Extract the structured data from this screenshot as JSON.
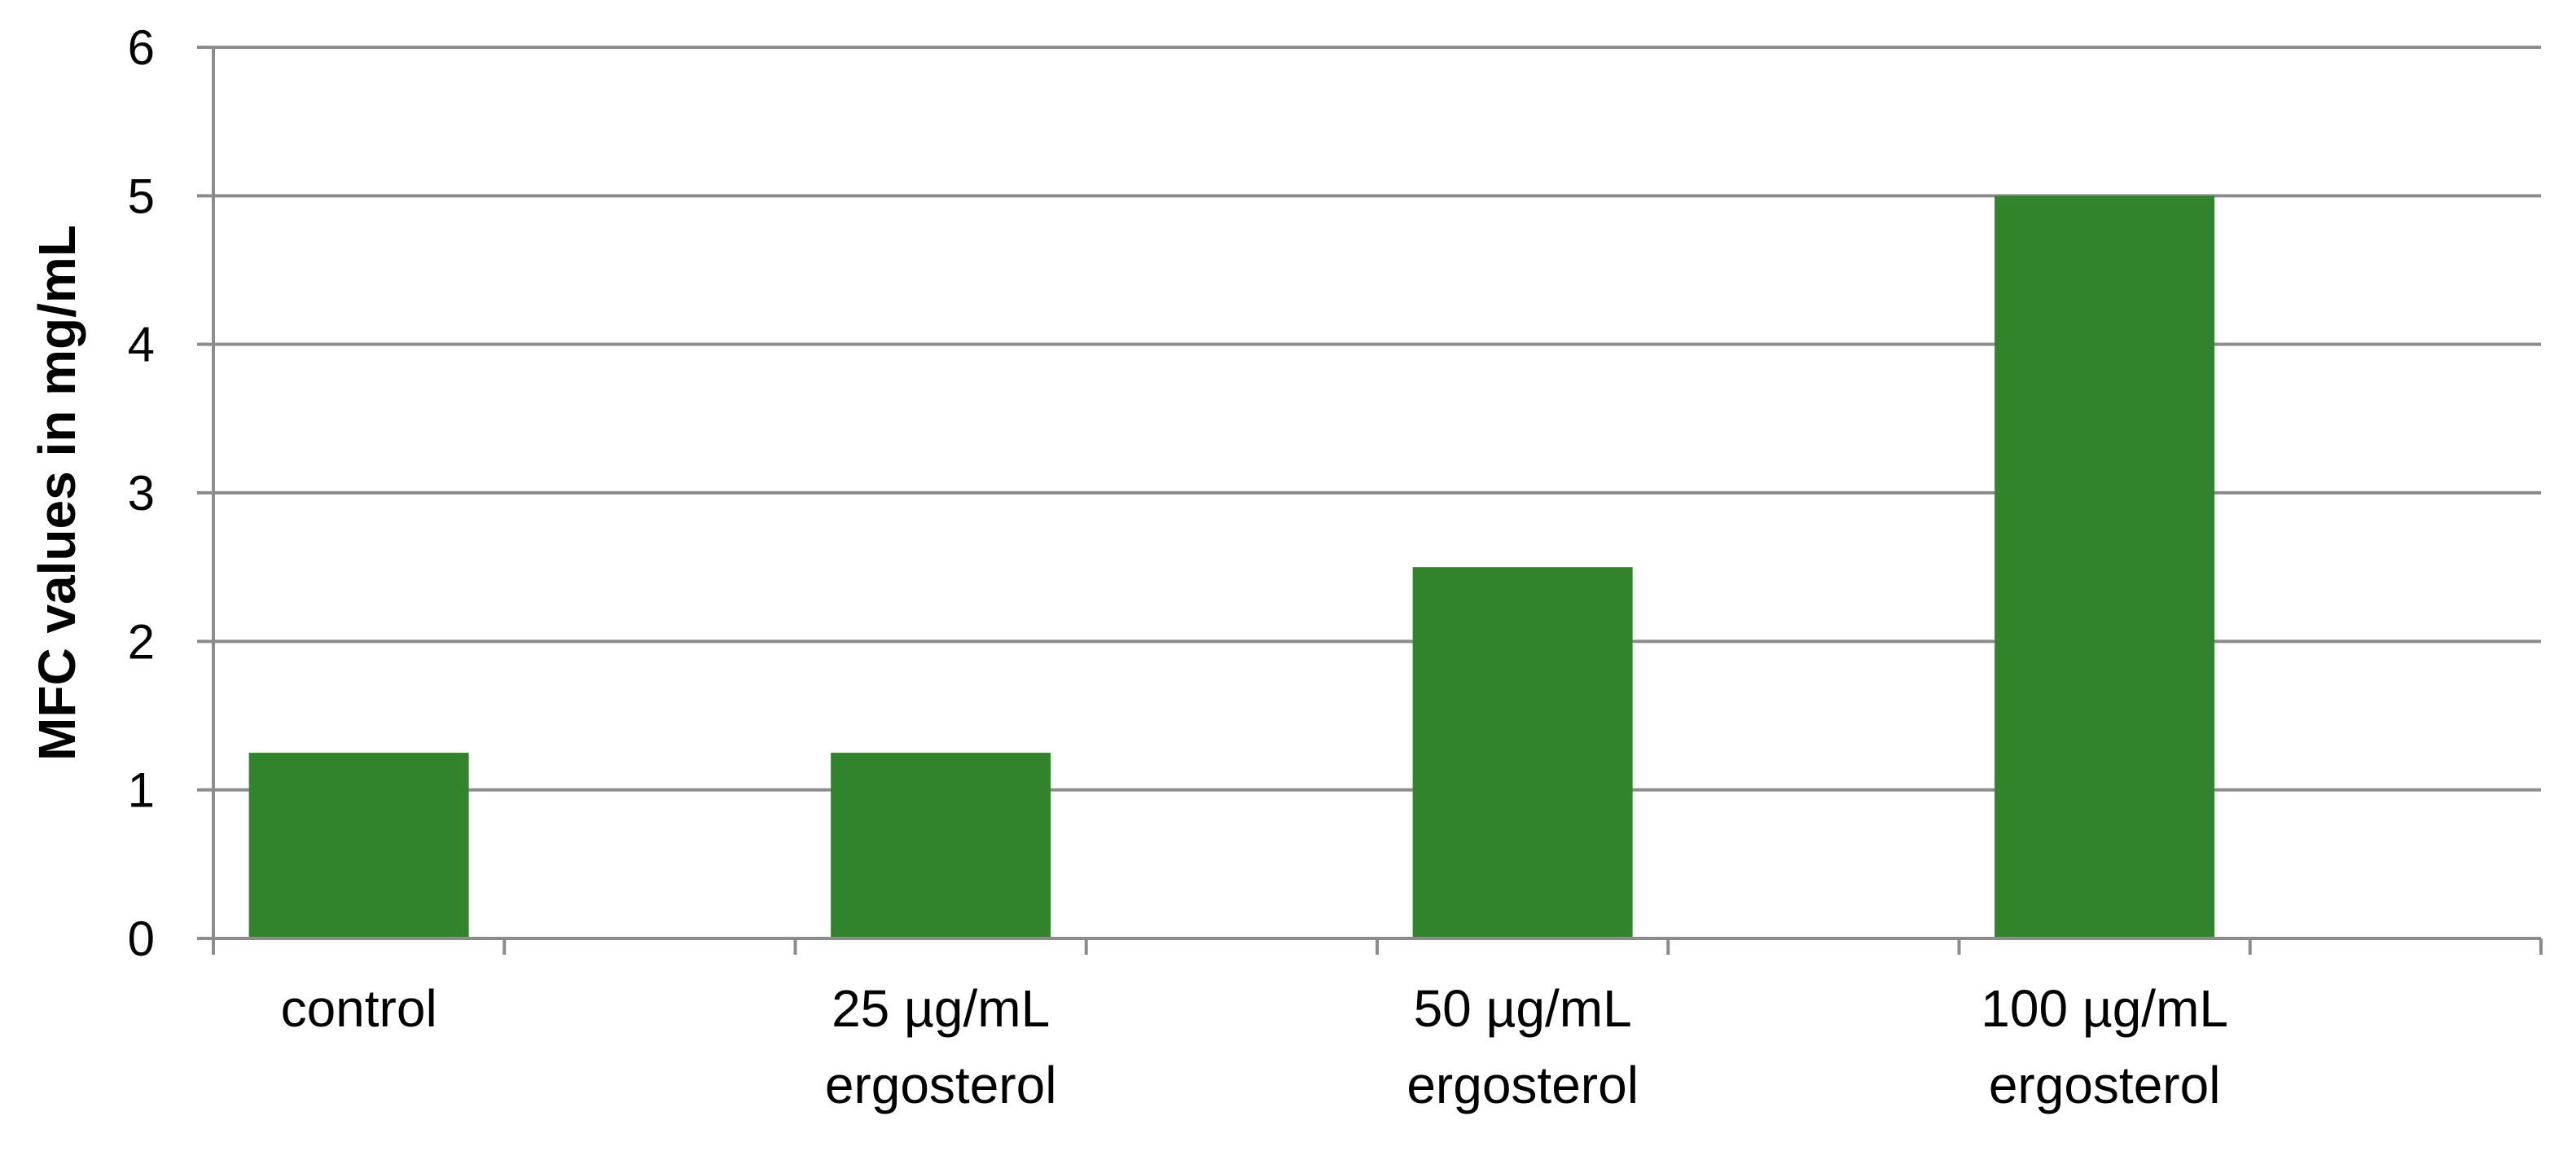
{
  "chart_data": {
    "type": "bar",
    "categories": [
      [
        "control"
      ],
      [
        "25 µg/mL",
        "ergosterol"
      ],
      [
        "50 µg/mL",
        "ergosterol"
      ],
      [
        "100 µg/mL",
        "ergosterol"
      ]
    ],
    "values": [
      1.25,
      1.25,
      2.5,
      5
    ],
    "ylabel": "MFC values in mg/mL",
    "xlabel": "",
    "title": "",
    "ylim": [
      0,
      6
    ],
    "yticks": [
      0,
      1,
      2,
      3,
      4,
      5,
      6
    ],
    "grid": true,
    "legend": "none",
    "colors": {
      "bar": "#31842c",
      "grid": "#8c8c8c",
      "axis": "#8c8c8c"
    }
  }
}
